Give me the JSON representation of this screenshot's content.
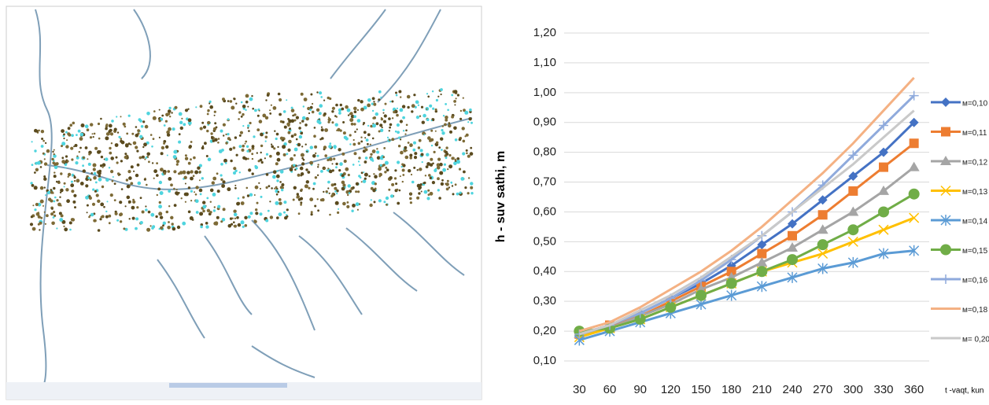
{
  "chart_data": {
    "type": "line",
    "y_label": "h - suv  sathi, m",
    "x_label": "t -vaqt, kun",
    "categories": [
      "30",
      "60",
      "90",
      "120",
      "150",
      "180",
      "210",
      "240",
      "270",
      "300",
      "330",
      "360"
    ],
    "ylim": [
      0.1,
      1.2
    ],
    "yticks": [
      {
        "value": 0.1,
        "label": "0,10"
      },
      {
        "value": 0.2,
        "label": "0,20"
      },
      {
        "value": 0.3,
        "label": "0,30"
      },
      {
        "value": 0.4,
        "label": "0,40"
      },
      {
        "value": 0.5,
        "label": "0,50"
      },
      {
        "value": 0.6,
        "label": "0,60"
      },
      {
        "value": 0.7,
        "label": "0,70"
      },
      {
        "value": 0.8,
        "label": "0,80"
      },
      {
        "value": 0.9,
        "label": "0,90"
      },
      {
        "value": 1.0,
        "label": "1,00"
      },
      {
        "value": 1.1,
        "label": "1,10"
      },
      {
        "value": 1.2,
        "label": "1,20"
      }
    ],
    "grid": true,
    "legend": "right",
    "series": [
      {
        "name": "м=0,10",
        "color": "#4472c4",
        "marker": "diamond",
        "values": [
          0.19,
          0.22,
          0.26,
          0.31,
          0.36,
          0.42,
          0.49,
          0.56,
          0.64,
          0.72,
          0.8,
          0.9
        ]
      },
      {
        "name": "м=0,11",
        "color": "#ed7d31",
        "marker": "square",
        "values": [
          0.19,
          0.22,
          0.25,
          0.3,
          0.35,
          0.4,
          0.46,
          0.52,
          0.59,
          0.67,
          0.75,
          0.83
        ]
      },
      {
        "name": "м=0,12",
        "color": "#a5a5a5",
        "marker": "triangle",
        "values": [
          0.19,
          0.21,
          0.25,
          0.29,
          0.34,
          0.38,
          0.43,
          0.48,
          0.54,
          0.6,
          0.67,
          0.75
        ]
      },
      {
        "name": "м=0,13",
        "color": "#ffc000",
        "marker": "x",
        "values": [
          0.18,
          0.21,
          0.24,
          0.28,
          0.32,
          0.36,
          0.4,
          0.43,
          0.46,
          0.5,
          0.54,
          0.58
        ]
      },
      {
        "name": "м=0,14",
        "color": "#5b9bd5",
        "marker": "star",
        "values": [
          0.17,
          0.2,
          0.23,
          0.26,
          0.29,
          0.32,
          0.35,
          0.38,
          0.41,
          0.43,
          0.46,
          0.47
        ]
      },
      {
        "name": "м=0,15",
        "color": "#70ad47",
        "marker": "circle",
        "values": [
          0.2,
          0.21,
          0.24,
          0.28,
          0.32,
          0.36,
          0.4,
          0.44,
          0.49,
          0.54,
          0.6,
          0.66
        ]
      },
      {
        "name": "м=0,16",
        "color": "#8faadc",
        "marker": "plus",
        "values": [
          0.19,
          0.22,
          0.26,
          0.31,
          0.37,
          0.44,
          0.52,
          0.6,
          0.69,
          0.79,
          0.89,
          0.99
        ]
      },
      {
        "name": "м=0,18",
        "color": "#f4b183",
        "marker": "none",
        "values": [
          0.2,
          0.23,
          0.28,
          0.34,
          0.4,
          0.47,
          0.55,
          0.64,
          0.73,
          0.83,
          0.94,
          1.05
        ]
      },
      {
        "name": "м= 0,20",
        "color": "#c9c9c9",
        "marker": "none",
        "values": [
          0.19,
          0.22,
          0.27,
          0.32,
          0.38,
          0.45,
          0.52,
          0.6,
          0.68,
          0.76,
          0.85,
          0.94
        ]
      }
    ]
  }
}
